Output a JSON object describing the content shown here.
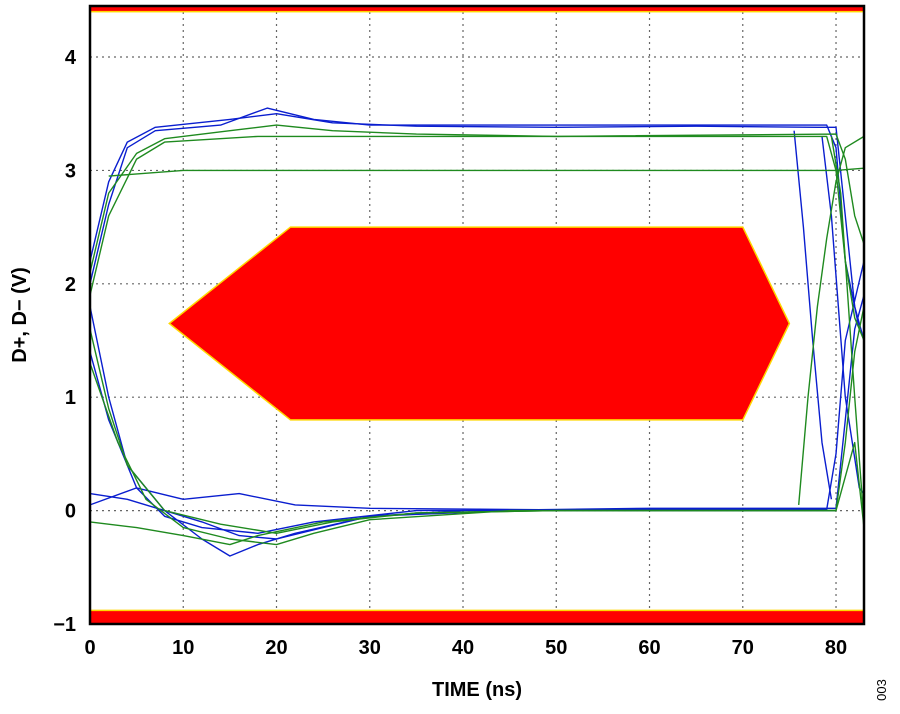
{
  "chart_data": {
    "type": "line",
    "title": "",
    "xlabel": "TIME (ns)",
    "ylabel": "D+, D− (V)",
    "xlim": [
      0,
      83
    ],
    "ylim": [
      -1,
      4.45
    ],
    "x_ticks": [
      0,
      10,
      20,
      30,
      40,
      50,
      60,
      70,
      80
    ],
    "y_ticks": [
      -1,
      0,
      1,
      2,
      3,
      4
    ],
    "x_tick_labels": [
      "0",
      "10",
      "20",
      "30",
      "40",
      "50",
      "60",
      "70",
      "80"
    ],
    "y_tick_labels": [
      "−1",
      "0",
      "1",
      "2",
      "3",
      "4"
    ],
    "grid": true,
    "figure_id": "003",
    "colors": {
      "series_a": "#0a1ecf",
      "series_b": "#1f8a1f",
      "mask": "#ff0000",
      "mask_edge": "#ffd700"
    },
    "mask_regions": [
      {
        "name": "eye-mask",
        "points": [
          [
            8.5,
            1.65
          ],
          [
            21.5,
            2.5
          ],
          [
            70,
            2.5
          ],
          [
            75,
            1.65
          ],
          [
            70,
            0.8
          ],
          [
            21.5,
            0.8
          ]
        ]
      },
      {
        "name": "upper-limit",
        "y_from": 4.4,
        "y_to": 4.45
      },
      {
        "name": "lower-limit",
        "y_from": -1,
        "y_to": -0.88
      }
    ],
    "series": [
      {
        "color": "#0a1ecf",
        "points": [
          [
            0,
            2.2
          ],
          [
            2,
            2.9
          ],
          [
            4,
            3.25
          ],
          [
            7,
            3.38
          ],
          [
            15,
            3.45
          ],
          [
            20,
            3.5
          ],
          [
            26,
            3.42
          ],
          [
            35,
            3.39
          ],
          [
            50,
            3.38
          ],
          [
            65,
            3.39
          ],
          [
            78,
            3.38
          ],
          [
            80,
            3.38
          ],
          [
            81,
            2.6
          ],
          [
            82,
            1.8
          ],
          [
            83,
            1.5
          ]
        ]
      },
      {
        "color": "#0a1ecf",
        "points": [
          [
            0,
            2.0
          ],
          [
            2,
            2.7
          ],
          [
            4,
            3.2
          ],
          [
            7,
            3.35
          ],
          [
            14,
            3.4
          ],
          [
            19,
            3.55
          ],
          [
            24,
            3.45
          ],
          [
            30,
            3.4
          ],
          [
            50,
            3.4
          ],
          [
            79,
            3.4
          ],
          [
            80,
            3.2
          ],
          [
            81,
            2.2
          ],
          [
            82.5,
            1.6
          ]
        ]
      },
      {
        "color": "#0a1ecf",
        "points": [
          [
            0,
            1.8
          ],
          [
            2,
            1.0
          ],
          [
            4,
            0.4
          ],
          [
            8,
            0.0
          ],
          [
            12,
            -0.1
          ],
          [
            16,
            -0.22
          ],
          [
            20,
            -0.25
          ],
          [
            25,
            -0.15
          ],
          [
            30,
            -0.05
          ],
          [
            40,
            0.0
          ],
          [
            60,
            0.02
          ],
          [
            80,
            0.02
          ],
          [
            81,
            0.8
          ],
          [
            82,
            1.6
          ],
          [
            83,
            1.9
          ]
        ]
      },
      {
        "color": "#0a1ecf",
        "points": [
          [
            0,
            1.4
          ],
          [
            2,
            0.8
          ],
          [
            5,
            0.2
          ],
          [
            8,
            -0.05
          ],
          [
            12,
            -0.15
          ],
          [
            18,
            -0.2
          ],
          [
            24,
            -0.1
          ],
          [
            35,
            0.0
          ],
          [
            60,
            0.01
          ],
          [
            79,
            0.01
          ],
          [
            80,
            0.5
          ],
          [
            81,
            1.5
          ],
          [
            83,
            2.2
          ]
        ]
      },
      {
        "color": "#0a1ecf",
        "points": [
          [
            0,
            0.15
          ],
          [
            4,
            0.1
          ],
          [
            8,
            0.0
          ],
          [
            12,
            -0.25
          ],
          [
            15,
            -0.4
          ],
          [
            18,
            -0.3
          ],
          [
            22,
            -0.2
          ],
          [
            30,
            -0.05
          ],
          [
            45,
            0.0
          ],
          [
            80,
            0.0
          ]
        ]
      },
      {
        "color": "#0a1ecf",
        "points": [
          [
            0,
            0.05
          ],
          [
            5,
            0.2
          ],
          [
            10,
            0.1
          ],
          [
            16,
            0.15
          ],
          [
            22,
            0.05
          ],
          [
            30,
            0.02
          ],
          [
            60,
            0.0
          ],
          [
            80,
            0.0
          ]
        ]
      },
      {
        "color": "#0a1ecf",
        "points": [
          [
            75.5,
            3.35
          ],
          [
            76.5,
            2.5
          ],
          [
            77.5,
            1.5
          ],
          [
            78.5,
            0.6
          ],
          [
            79.5,
            0.1
          ]
        ]
      },
      {
        "color": "#0a1ecf",
        "points": [
          [
            78.5,
            3.3
          ],
          [
            79.5,
            2.6
          ],
          [
            81,
            1.0
          ],
          [
            82.5,
            0.2
          ],
          [
            83,
            0.15
          ]
        ]
      },
      {
        "color": "#1f8a1f",
        "points": [
          [
            0,
            2.1
          ],
          [
            2,
            2.8
          ],
          [
            5,
            3.15
          ],
          [
            8,
            3.28
          ],
          [
            15,
            3.35
          ],
          [
            20,
            3.4
          ],
          [
            26,
            3.35
          ],
          [
            35,
            3.32
          ],
          [
            50,
            3.3
          ],
          [
            79,
            3.3
          ],
          [
            80,
            3.0
          ],
          [
            81,
            2.2
          ],
          [
            82,
            1.7
          ],
          [
            83,
            1.5
          ]
        ]
      },
      {
        "color": "#1f8a1f",
        "points": [
          [
            0,
            1.9
          ],
          [
            2,
            2.6
          ],
          [
            5,
            3.1
          ],
          [
            8,
            3.25
          ],
          [
            18,
            3.3
          ],
          [
            30,
            3.3
          ],
          [
            50,
            3.3
          ],
          [
            80,
            3.32
          ],
          [
            81,
            3.1
          ],
          [
            82,
            2.6
          ],
          [
            83,
            2.35
          ]
        ]
      },
      {
        "color": "#1f8a1f",
        "points": [
          [
            0,
            1.6
          ],
          [
            2,
            0.9
          ],
          [
            4,
            0.4
          ],
          [
            8,
            0.0
          ],
          [
            14,
            -0.12
          ],
          [
            20,
            -0.2
          ],
          [
            26,
            -0.1
          ],
          [
            35,
            -0.02
          ],
          [
            50,
            0.0
          ],
          [
            80,
            0.0
          ],
          [
            81,
            0.6
          ],
          [
            82,
            1.4
          ],
          [
            83,
            1.8
          ]
        ]
      },
      {
        "color": "#1f8a1f",
        "points": [
          [
            0,
            1.3
          ],
          [
            3,
            0.6
          ],
          [
            6,
            0.1
          ],
          [
            10,
            -0.15
          ],
          [
            15,
            -0.25
          ],
          [
            20,
            -0.3
          ],
          [
            24,
            -0.2
          ],
          [
            30,
            -0.08
          ],
          [
            45,
            0.0
          ],
          [
            80,
            0.0
          ],
          [
            82,
            0.6
          ],
          [
            83,
            -0.15
          ]
        ]
      },
      {
        "color": "#1f8a1f",
        "points": [
          [
            0,
            -0.1
          ],
          [
            5,
            -0.15
          ],
          [
            10,
            -0.22
          ],
          [
            15,
            -0.3
          ],
          [
            18,
            -0.22
          ],
          [
            25,
            -0.1
          ],
          [
            35,
            -0.02
          ],
          [
            50,
            0.0
          ],
          [
            80,
            0.0
          ]
        ]
      },
      {
        "color": "#1f8a1f",
        "points": [
          [
            2,
            2.95
          ],
          [
            10,
            3.0
          ],
          [
            20,
            3.0
          ],
          [
            30,
            3.0
          ],
          [
            40,
            3.0
          ],
          [
            50,
            3.0
          ],
          [
            60,
            3.0
          ],
          [
            70,
            3.0
          ],
          [
            80,
            3.0
          ],
          [
            83,
            3.02
          ]
        ]
      },
      {
        "color": "#1f8a1f",
        "points": [
          [
            76,
            0.05
          ],
          [
            77,
            1.0
          ],
          [
            78,
            1.8
          ],
          [
            79,
            2.4
          ],
          [
            80,
            2.9
          ],
          [
            81,
            3.2
          ],
          [
            83,
            3.3
          ]
        ]
      },
      {
        "color": "#1f8a1f",
        "points": [
          [
            79.5,
            3.3
          ],
          [
            80.5,
            2.8
          ],
          [
            82,
            1.0
          ],
          [
            83,
            -0.1
          ]
        ]
      }
    ]
  }
}
